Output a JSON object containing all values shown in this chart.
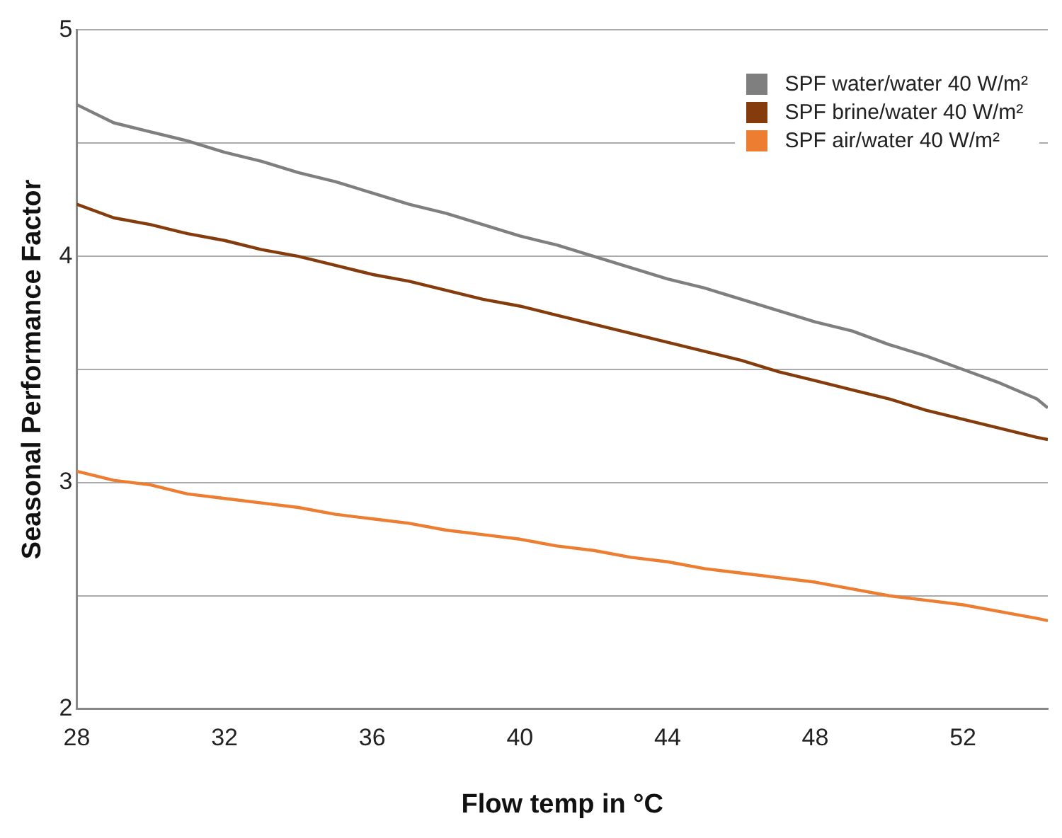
{
  "chart_data": {
    "type": "line",
    "xlabel": "Flow temp in °C",
    "ylabel": "Seasonal Performance Factor",
    "x": [
      28,
      29,
      30,
      31,
      32,
      33,
      34,
      35,
      36,
      37,
      38,
      39,
      40,
      41,
      42,
      43,
      44,
      45,
      46,
      47,
      48,
      49,
      50,
      51,
      52,
      53,
      54,
      54.3
    ],
    "series": [
      {
        "name": "SPF water/water 40 W/m²",
        "color": "#7f7f7f",
        "values": [
          4.67,
          4.59,
          4.55,
          4.51,
          4.46,
          4.42,
          4.37,
          4.33,
          4.28,
          4.23,
          4.19,
          4.14,
          4.09,
          4.05,
          4.0,
          3.95,
          3.9,
          3.86,
          3.81,
          3.76,
          3.71,
          3.67,
          3.61,
          3.56,
          3.5,
          3.44,
          3.37,
          3.33
        ]
      },
      {
        "name": "SPF brine/water 40 W/m²",
        "color": "#843c0c",
        "values": [
          4.23,
          4.17,
          4.14,
          4.1,
          4.07,
          4.03,
          4.0,
          3.96,
          3.92,
          3.89,
          3.85,
          3.81,
          3.78,
          3.74,
          3.7,
          3.66,
          3.62,
          3.58,
          3.54,
          3.49,
          3.45,
          3.41,
          3.37,
          3.32,
          3.28,
          3.24,
          3.2,
          3.19
        ]
      },
      {
        "name": "SPF air/water 40 W/m²",
        "color": "#ed7d31",
        "values": [
          3.05,
          3.01,
          2.99,
          2.95,
          2.93,
          2.91,
          2.89,
          2.86,
          2.84,
          2.82,
          2.79,
          2.77,
          2.75,
          2.72,
          2.7,
          2.67,
          2.65,
          2.62,
          2.6,
          2.58,
          2.56,
          2.53,
          2.5,
          2.48,
          2.46,
          2.43,
          2.4,
          2.39
        ]
      }
    ],
    "xlim": [
      28,
      54.3
    ],
    "xticks": [
      28,
      32,
      36,
      40,
      44,
      48,
      52
    ],
    "ylim": [
      2,
      5
    ],
    "yticks": [
      2,
      {
        "value": 2.5,
        "label": null
      },
      3,
      {
        "value": 3.5,
        "label": null
      },
      4,
      {
        "value": 4.5,
        "label": null
      },
      5
    ],
    "grid": "y",
    "legend": "top right",
    "marker": "none",
    "line_style": "solid"
  }
}
